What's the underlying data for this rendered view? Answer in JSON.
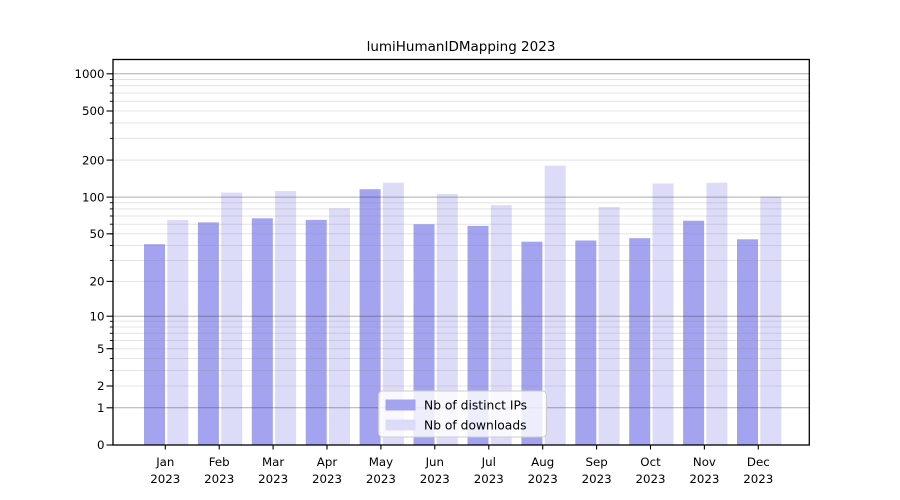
{
  "chart_data": {
    "type": "bar",
    "title": "lumiHumanIDMapping 2023",
    "categories": [
      "Jan",
      "Feb",
      "Mar",
      "Apr",
      "May",
      "Jun",
      "Jul",
      "Aug",
      "Sep",
      "Oct",
      "Nov",
      "Dec"
    ],
    "category_sublabel": "2023",
    "series": [
      {
        "name": "Nb of distinct IPs",
        "color": "#a3a3ef",
        "values": [
          41,
          62,
          67,
          65,
          116,
          60,
          58,
          43,
          44,
          46,
          64,
          45
        ]
      },
      {
        "name": "Nb of downloads",
        "color": "#dcdcf9",
        "values": [
          65,
          109,
          112,
          81,
          131,
          106,
          86,
          180,
          83,
          129,
          131,
          101
        ]
      }
    ],
    "y_axis": {
      "scale": "log10(value+1)",
      "ticks": [
        0,
        1,
        2,
        5,
        10,
        20,
        50,
        100,
        200,
        500,
        1000
      ],
      "major_gridlines": [
        1,
        10,
        100,
        1000
      ],
      "minor_gridlines": [
        2,
        3,
        4,
        5,
        6,
        7,
        8,
        9,
        20,
        30,
        40,
        50,
        60,
        70,
        80,
        90,
        200,
        300,
        400,
        500,
        600,
        700,
        800,
        900
      ],
      "range": [
        0,
        1300
      ],
      "grid": true
    },
    "legend": {
      "position": "inside-bottom-center",
      "entries": [
        "Nb of distinct IPs",
        "Nb of downloads"
      ]
    },
    "colors": {
      "background": "#ffffff",
      "frame": "#000000",
      "major_grid": "#b0b0b0",
      "minor_grid": "#e2e2e2",
      "text": "#000000",
      "legend_border": "#cccccc",
      "legend_fill": "rgba(255,255,255,0.8)"
    }
  }
}
